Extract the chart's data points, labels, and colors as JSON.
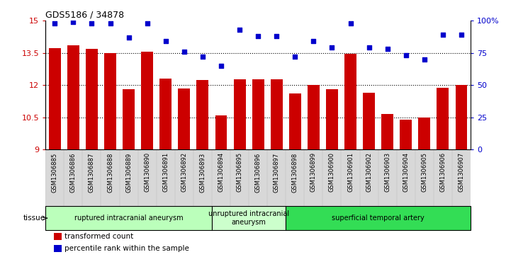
{
  "title": "GDS5186 / 34878",
  "samples": [
    "GSM1306885",
    "GSM1306886",
    "GSM1306887",
    "GSM1306888",
    "GSM1306889",
    "GSM1306890",
    "GSM1306891",
    "GSM1306892",
    "GSM1306893",
    "GSM1306894",
    "GSM1306895",
    "GSM1306896",
    "GSM1306897",
    "GSM1306898",
    "GSM1306899",
    "GSM1306900",
    "GSM1306901",
    "GSM1306902",
    "GSM1306903",
    "GSM1306904",
    "GSM1306905",
    "GSM1306906",
    "GSM1306907"
  ],
  "bar_values": [
    13.72,
    13.85,
    13.67,
    13.48,
    11.8,
    13.55,
    12.3,
    11.85,
    12.25,
    10.58,
    12.28,
    12.27,
    12.27,
    11.62,
    12.02,
    11.8,
    13.47,
    11.65,
    10.65,
    10.4,
    10.48,
    11.87,
    12.02
  ],
  "percentile_values": [
    98,
    99,
    98,
    98,
    87,
    98,
    84,
    76,
    72,
    65,
    93,
    88,
    88,
    72,
    84,
    79,
    98,
    79,
    78,
    73,
    70,
    89,
    89
  ],
  "bar_color": "#cc0000",
  "dot_color": "#0000cc",
  "ylim_left": [
    9,
    15
  ],
  "ylim_right": [
    0,
    100
  ],
  "yticks_left": [
    9,
    10.5,
    12,
    13.5,
    15
  ],
  "ytick_labels_left": [
    "9",
    "10.5",
    "12",
    "13.5",
    "15"
  ],
  "yticks_right": [
    0,
    25,
    50,
    75,
    100
  ],
  "ytick_labels_right": [
    "0",
    "25",
    "50",
    "75",
    "100%"
  ],
  "groups": [
    {
      "label": "ruptured intracranial aneurysm",
      "start": 0,
      "end": 9,
      "color": "#bbffbb"
    },
    {
      "label": "unruptured intracranial\naneurysm",
      "start": 9,
      "end": 13,
      "color": "#ccffcc"
    },
    {
      "label": "superficial temporal artery",
      "start": 13,
      "end": 23,
      "color": "#33dd55"
    }
  ],
  "tissue_label": "tissue",
  "legend_bar_label": "transformed count",
  "legend_dot_label": "percentile rank within the sample",
  "plot_bg_color": "#ffffff",
  "tick_bg_color": "#d8d8d8"
}
